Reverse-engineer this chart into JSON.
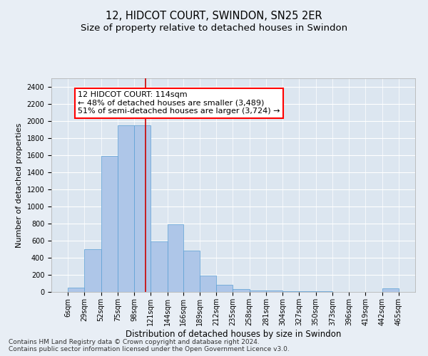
{
  "title": "12, HIDCOT COURT, SWINDON, SN25 2ER",
  "subtitle": "Size of property relative to detached houses in Swindon",
  "xlabel": "Distribution of detached houses by size in Swindon",
  "ylabel": "Number of detached properties",
  "footer_line1": "Contains HM Land Registry data © Crown copyright and database right 2024.",
  "footer_line2": "Contains public sector information licensed under the Open Government Licence v3.0.",
  "annotation_line1": "12 HIDCOT COURT: 114sqm",
  "annotation_line2": "← 48% of detached houses are smaller (3,489)",
  "annotation_line3": "51% of semi-detached houses are larger (3,724) →",
  "bar_edges": [
    6,
    29,
    52,
    75,
    98,
    121,
    144,
    166,
    189,
    212,
    235,
    258,
    281,
    304,
    327,
    350,
    373,
    396,
    419,
    442,
    465
  ],
  "bar_heights": [
    50,
    500,
    1590,
    1950,
    1950,
    590,
    790,
    480,
    195,
    80,
    30,
    20,
    15,
    5,
    5,
    5,
    0,
    0,
    0,
    40
  ],
  "bar_color": "#aec6e8",
  "bar_edge_color": "#5a9fd4",
  "vline_x": 114,
  "vline_color": "#cc0000",
  "ylim": [
    0,
    2500
  ],
  "yticks": [
    0,
    200,
    400,
    600,
    800,
    1000,
    1200,
    1400,
    1600,
    1800,
    2000,
    2200,
    2400
  ],
  "bg_color": "#e8eef5",
  "plot_bg_color": "#dce6f0",
  "grid_color": "#ffffff",
  "title_fontsize": 10.5,
  "subtitle_fontsize": 9.5,
  "xlabel_fontsize": 8.5,
  "ylabel_fontsize": 8,
  "tick_fontsize": 7,
  "annotation_fontsize": 8,
  "footer_fontsize": 6.5
}
